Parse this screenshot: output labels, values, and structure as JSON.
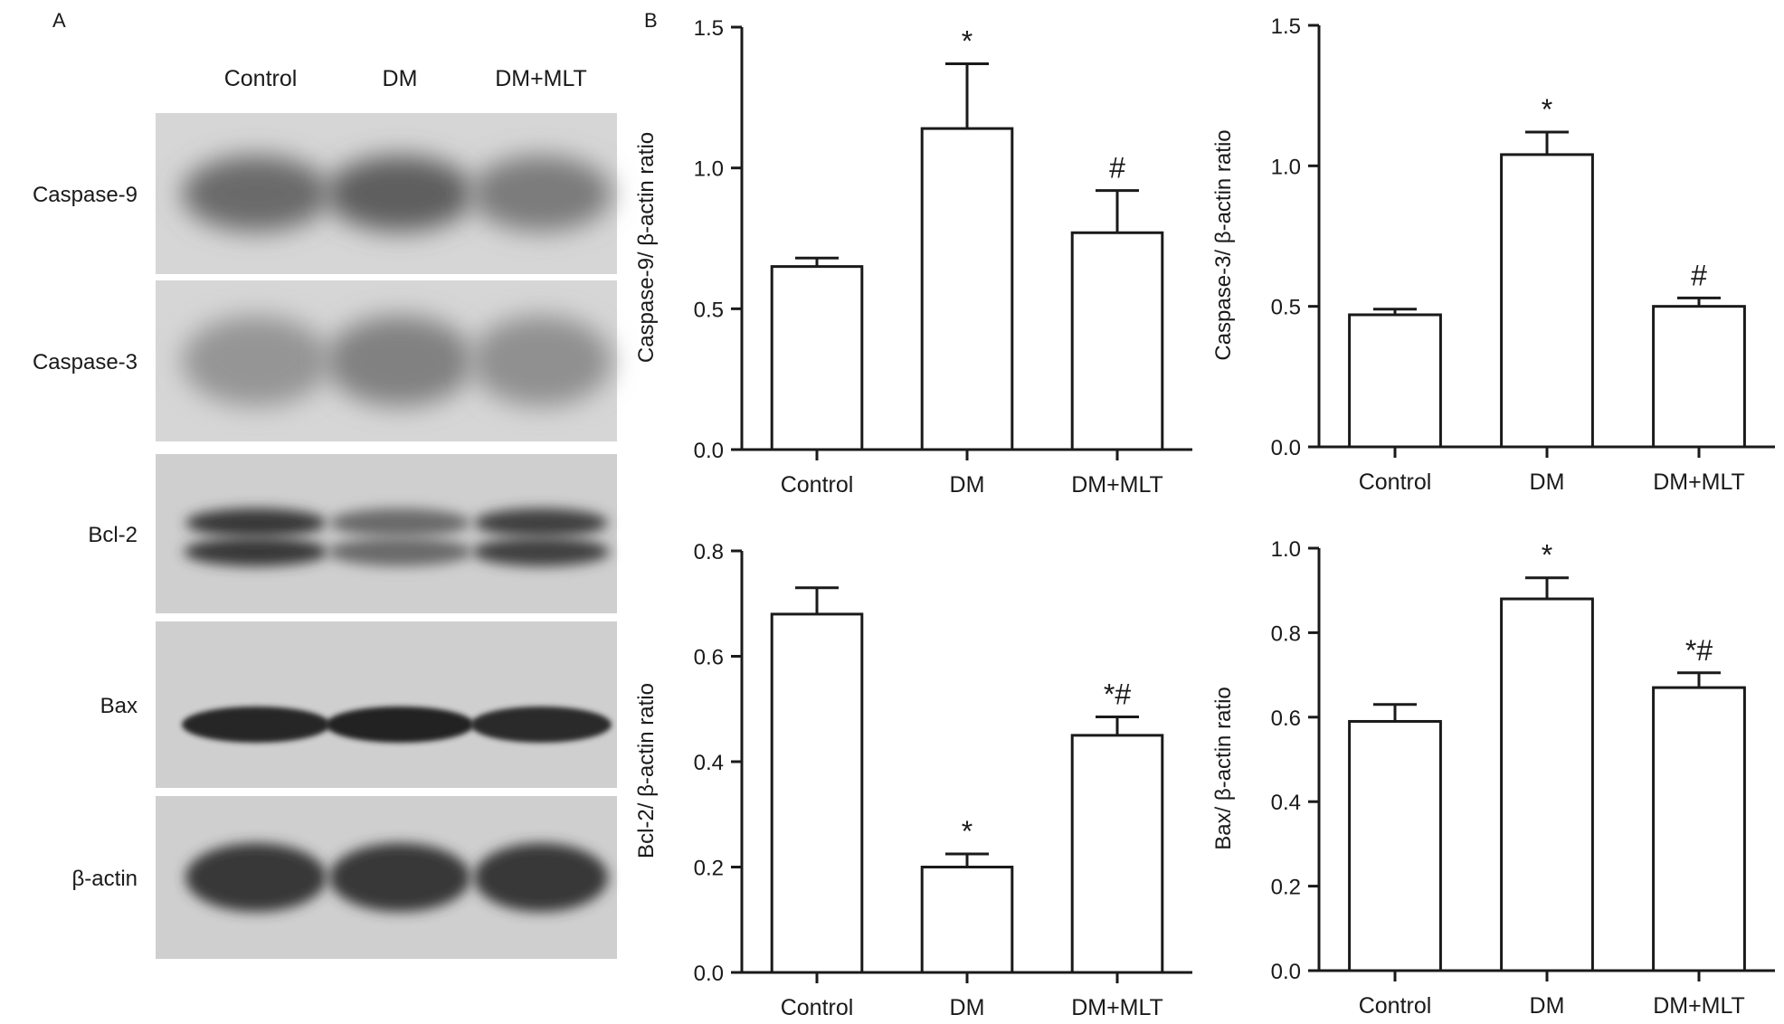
{
  "panel_labels": {
    "a": "A",
    "b": "B"
  },
  "blot": {
    "lanes": [
      "Control",
      "DM",
      "DM+MLT"
    ],
    "rows": [
      {
        "label": "Caspase-9",
        "band": "diffuse",
        "intensity": [
          0.55,
          0.62,
          0.45
        ]
      },
      {
        "label": "Caspase-3",
        "band": "faint",
        "intensity": [
          0.3,
          0.42,
          0.33
        ]
      },
      {
        "label": "Bcl-2",
        "band": "double",
        "intensity": [
          0.85,
          0.55,
          0.8
        ]
      },
      {
        "label": "Bax",
        "band": "sharp",
        "intensity": [
          0.95,
          0.98,
          0.92
        ]
      },
      {
        "label": "β-actin",
        "band": "thick",
        "intensity": [
          0.85,
          0.85,
          0.85
        ]
      }
    ]
  },
  "chart_data": [
    {
      "type": "bar",
      "categories": [
        "Control",
        "DM",
        "DM+MLT"
      ],
      "values": [
        0.65,
        1.14,
        0.77
      ],
      "errors": [
        0.03,
        0.23,
        0.15
      ],
      "annotations": [
        "",
        "*",
        "#"
      ],
      "title": "",
      "xlabel": "",
      "ylabel": "Caspase-9/ β-actin ratio",
      "ylim": [
        0,
        1.5
      ],
      "yticks": [
        "0.0",
        "0.5",
        "1.0",
        "1.5"
      ],
      "grid": false
    },
    {
      "type": "bar",
      "categories": [
        "Control",
        "DM",
        "DM+MLT"
      ],
      "values": [
        0.47,
        1.04,
        0.5
      ],
      "errors": [
        0.02,
        0.08,
        0.03
      ],
      "annotations": [
        "",
        "*",
        "#"
      ],
      "title": "",
      "xlabel": "",
      "ylabel": "Caspase-3/ β-actin ratio",
      "ylim": [
        0,
        1.5
      ],
      "yticks": [
        "0.0",
        "0.5",
        "1.0",
        "1.5"
      ],
      "grid": false
    },
    {
      "type": "bar",
      "categories": [
        "Control",
        "DM",
        "DM+MLT"
      ],
      "values": [
        0.68,
        0.2,
        0.45
      ],
      "errors": [
        0.05,
        0.025,
        0.035
      ],
      "annotations": [
        "",
        "*",
        "*#"
      ],
      "title": "",
      "xlabel": "",
      "ylabel": "Bcl-2/ β-actin ratio",
      "ylim": [
        0,
        0.8
      ],
      "yticks": [
        "0.0",
        "0.2",
        "0.4",
        "0.6",
        "0.8"
      ],
      "grid": false
    },
    {
      "type": "bar",
      "categories": [
        "Control",
        "DM",
        "DM+MLT"
      ],
      "values": [
        0.59,
        0.88,
        0.67
      ],
      "errors": [
        0.04,
        0.05,
        0.035
      ],
      "annotations": [
        "",
        "*",
        "*#"
      ],
      "title": "",
      "xlabel": "",
      "ylabel": "Bax/ β-actin ratio",
      "ylim": [
        0,
        1.0
      ],
      "yticks": [
        "0.0",
        "0.2",
        "0.4",
        "0.6",
        "0.8",
        "1.0"
      ],
      "grid": false
    }
  ]
}
